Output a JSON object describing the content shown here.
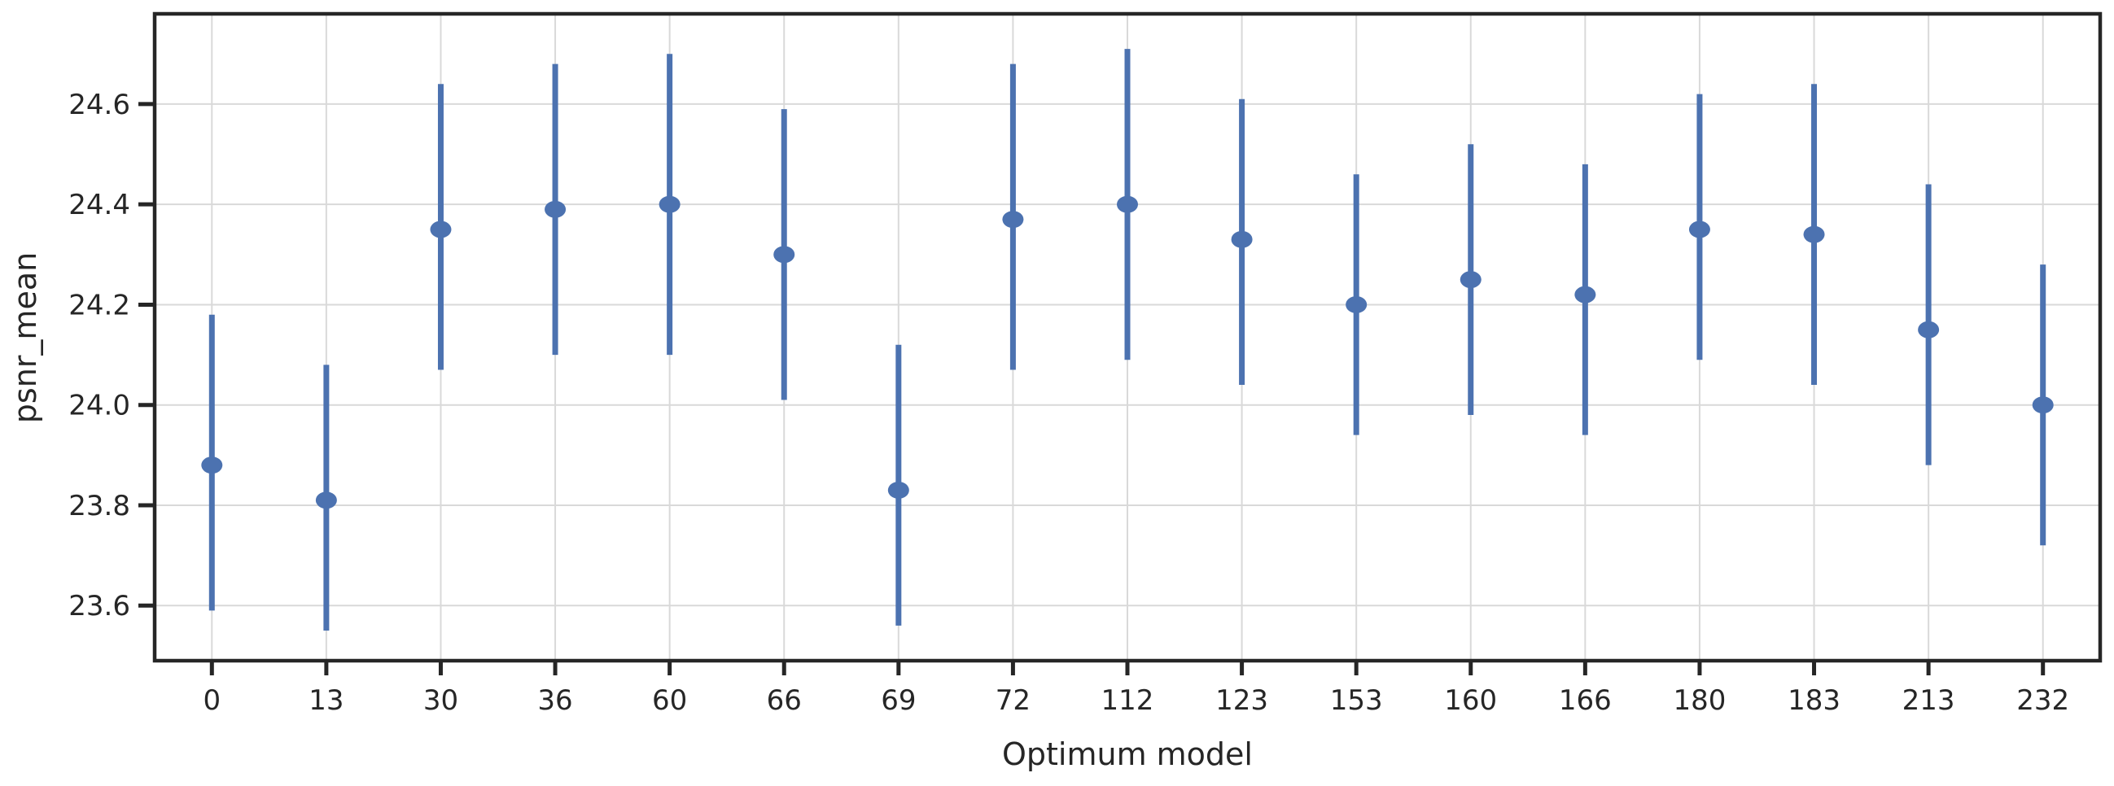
{
  "chart_data": {
    "type": "scatter",
    "subtype": "point-estimates-with-error-bars",
    "title": "",
    "xlabel": "Optimum model",
    "ylabel": "psnr_mean",
    "categories": [
      "0",
      "13",
      "30",
      "36",
      "60",
      "66",
      "69",
      "72",
      "112",
      "123",
      "153",
      "160",
      "166",
      "180",
      "183",
      "213",
      "232"
    ],
    "series": [
      {
        "name": "psnr_mean",
        "means": [
          23.88,
          23.81,
          24.35,
          24.39,
          24.4,
          24.3,
          23.83,
          24.37,
          24.4,
          24.33,
          24.2,
          24.25,
          24.22,
          24.35,
          24.34,
          24.15,
          24.0
        ],
        "ci_low": [
          23.59,
          23.55,
          24.07,
          24.1,
          24.1,
          24.01,
          23.56,
          24.07,
          24.09,
          24.04,
          23.94,
          23.98,
          23.94,
          24.09,
          24.04,
          23.88,
          23.72
        ],
        "ci_high": [
          24.18,
          24.08,
          24.64,
          24.68,
          24.7,
          24.59,
          24.12,
          24.68,
          24.71,
          24.61,
          24.46,
          24.52,
          24.48,
          24.62,
          24.64,
          24.44,
          24.28
        ]
      }
    ],
    "ylim": [
      23.49,
      24.78
    ],
    "yticks": [
      "23.6",
      "23.8",
      "24.0",
      "24.2",
      "24.4",
      "24.6"
    ],
    "grid": true,
    "legend_position": "none",
    "colors": {
      "marker": "#4C72B0",
      "grid": "#d9d9d9",
      "spine": "#262626",
      "text": "#262626",
      "background": "#ffffff"
    }
  }
}
